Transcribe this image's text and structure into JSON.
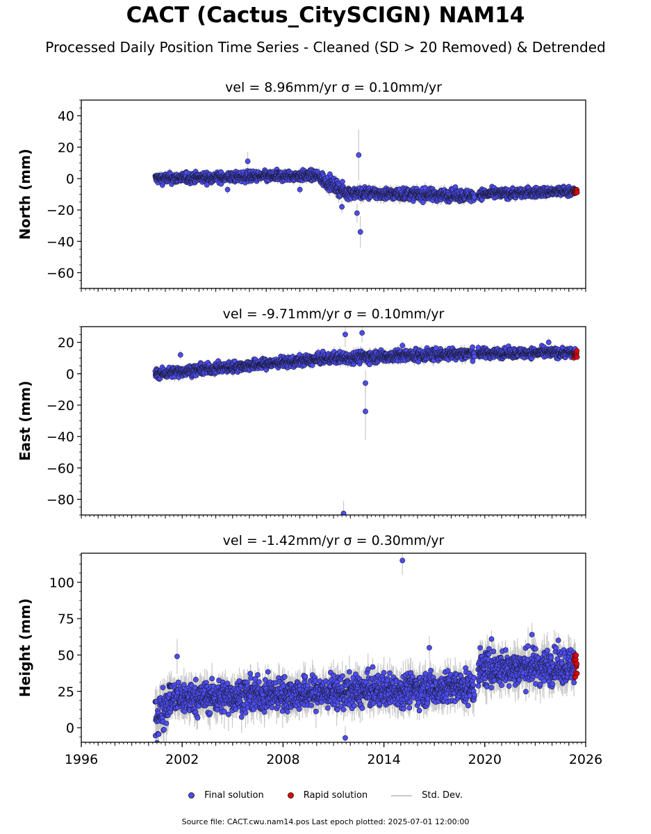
{
  "title": "CACT (Cactus_CitySCIGN) NAM14",
  "subtitle": "Processed Daily Position Time Series - Cleaned (SD > 20 Removed) & Detrended",
  "colors": {
    "final": "#4d4df2",
    "rapid": "#e60000",
    "stddev": "#c8c8c8"
  },
  "legend": {
    "final": "Final solution",
    "rapid": "Rapid solution",
    "stddev": "Std. Dev."
  },
  "footer": "Source file: CACT.cwu.nam14.pos  Last epoch plotted: 2025-07-01 12:00:00",
  "chart_data": [
    {
      "type": "scatter",
      "title": "vel = 8.96mm/yr   σ = 0.10mm/yr",
      "ylabel": "North (mm)",
      "xlim": [
        1996,
        2026
      ],
      "ylim": [
        -70,
        50
      ],
      "yticks": [
        -60,
        -40,
        -20,
        0,
        20,
        40
      ],
      "ytick_labels": [
        "−60",
        "−40",
        "−20",
        "0",
        "20",
        "40"
      ],
      "segments": [
        {
          "x0": 2000.4,
          "x1": 2010.1,
          "y0": 0,
          "y1": 2,
          "spread": 1.6,
          "sd": 2
        },
        {
          "x0": 2010.1,
          "x1": 2011.6,
          "y0": 1,
          "y1": -8,
          "spread": 2,
          "sd": 3
        },
        {
          "x0": 2011.6,
          "x1": 2019.4,
          "y0": -9,
          "y1": -11,
          "spread": 1.8,
          "sd": 2.5
        },
        {
          "x0": 2019.6,
          "x1": 2025.4,
          "y0": -10,
          "y1": -8,
          "spread": 1.5,
          "sd": 2
        }
      ],
      "outliers": [
        {
          "x": 2005.9,
          "y": 11,
          "sd": 6
        },
        {
          "x": 2012.5,
          "y": 15,
          "sd": 16
        },
        {
          "x": 2012.6,
          "y": -34,
          "sd": 10
        },
        {
          "x": 2012.4,
          "y": -22,
          "sd": 6
        },
        {
          "x": 2011.5,
          "y": -18,
          "sd": 4
        },
        {
          "x": 2004.7,
          "y": -7,
          "sd": 3
        },
        {
          "x": 2009.0,
          "y": -7,
          "sd": 3
        }
      ],
      "rapid": {
        "x0": 2025.3,
        "x1": 2025.5,
        "y": -8.5,
        "spread": 1
      }
    },
    {
      "type": "scatter",
      "title": "vel = -9.71mm/yr   σ = 0.10mm/yr",
      "ylabel": "East (mm)",
      "xlim": [
        1996,
        2026
      ],
      "ylim": [
        -90,
        30
      ],
      "yticks": [
        -80,
        -60,
        -40,
        -20,
        0,
        20
      ],
      "ytick_labels": [
        "−80",
        "−60",
        "−40",
        "−20",
        "0",
        "20"
      ],
      "segments": [
        {
          "x0": 2000.4,
          "x1": 2011.0,
          "y0": 0,
          "y1": 10,
          "spread": 1.6,
          "sd": 2
        },
        {
          "x0": 2011.0,
          "x1": 2019.4,
          "y0": 10,
          "y1": 13,
          "spread": 1.8,
          "sd": 2.5
        },
        {
          "x0": 2019.6,
          "x1": 2025.4,
          "y0": 13,
          "y1": 13.5,
          "spread": 1.5,
          "sd": 2
        }
      ],
      "outliers": [
        {
          "x": 2011.7,
          "y": 25,
          "sd": 8
        },
        {
          "x": 2012.7,
          "y": 26,
          "sd": 6
        },
        {
          "x": 2012.9,
          "y": -6,
          "sd": 8
        },
        {
          "x": 2012.9,
          "y": -24,
          "sd": 18
        },
        {
          "x": 2011.6,
          "y": -89,
          "sd": 8
        },
        {
          "x": 2023.8,
          "y": 20,
          "sd": 3
        },
        {
          "x": 2015.1,
          "y": 18,
          "sd": 3
        },
        {
          "x": 2001.9,
          "y": 12,
          "sd": 3
        }
      ],
      "rapid": {
        "x0": 2025.3,
        "x1": 2025.5,
        "y": 12,
        "spread": 1.2
      }
    },
    {
      "type": "scatter",
      "title": "vel = -1.42mm/yr   σ = 0.30mm/yr",
      "ylabel": "Height (mm)",
      "xlim": [
        1996,
        2026
      ],
      "ylim": [
        -10,
        120
      ],
      "yticks": [
        0,
        25,
        50,
        75,
        100
      ],
      "ytick_labels": [
        "0",
        "25",
        "50",
        "75",
        "100"
      ],
      "xticks": [
        1996,
        2002,
        2008,
        2014,
        2020,
        2026
      ],
      "xtick_labels": [
        "1996",
        "2002",
        "2008",
        "2014",
        "2020",
        "2026"
      ],
      "segments": [
        {
          "x0": 2000.4,
          "x1": 2001.2,
          "y0": 5,
          "y1": 20,
          "spread": 7,
          "sd": 10
        },
        {
          "x0": 2001.2,
          "x1": 2019.4,
          "y0": 20,
          "y1": 28,
          "spread": 5.5,
          "sd": 8
        },
        {
          "x0": 2019.6,
          "x1": 2025.4,
          "y0": 40,
          "y1": 43,
          "spread": 6,
          "sd": 9
        }
      ],
      "outliers": [
        {
          "x": 2015.1,
          "y": 115,
          "sd": 10
        },
        {
          "x": 2011.7,
          "y": -7,
          "sd": 8
        },
        {
          "x": 2001.7,
          "y": 49,
          "sd": 12
        },
        {
          "x": 2016.7,
          "y": 55,
          "sd": 8
        },
        {
          "x": 2022.8,
          "y": 64,
          "sd": 8
        },
        {
          "x": 2020.4,
          "y": 61,
          "sd": 6
        }
      ],
      "rapid": {
        "x0": 2025.3,
        "x1": 2025.5,
        "y": 44,
        "spread": 5
      }
    }
  ]
}
